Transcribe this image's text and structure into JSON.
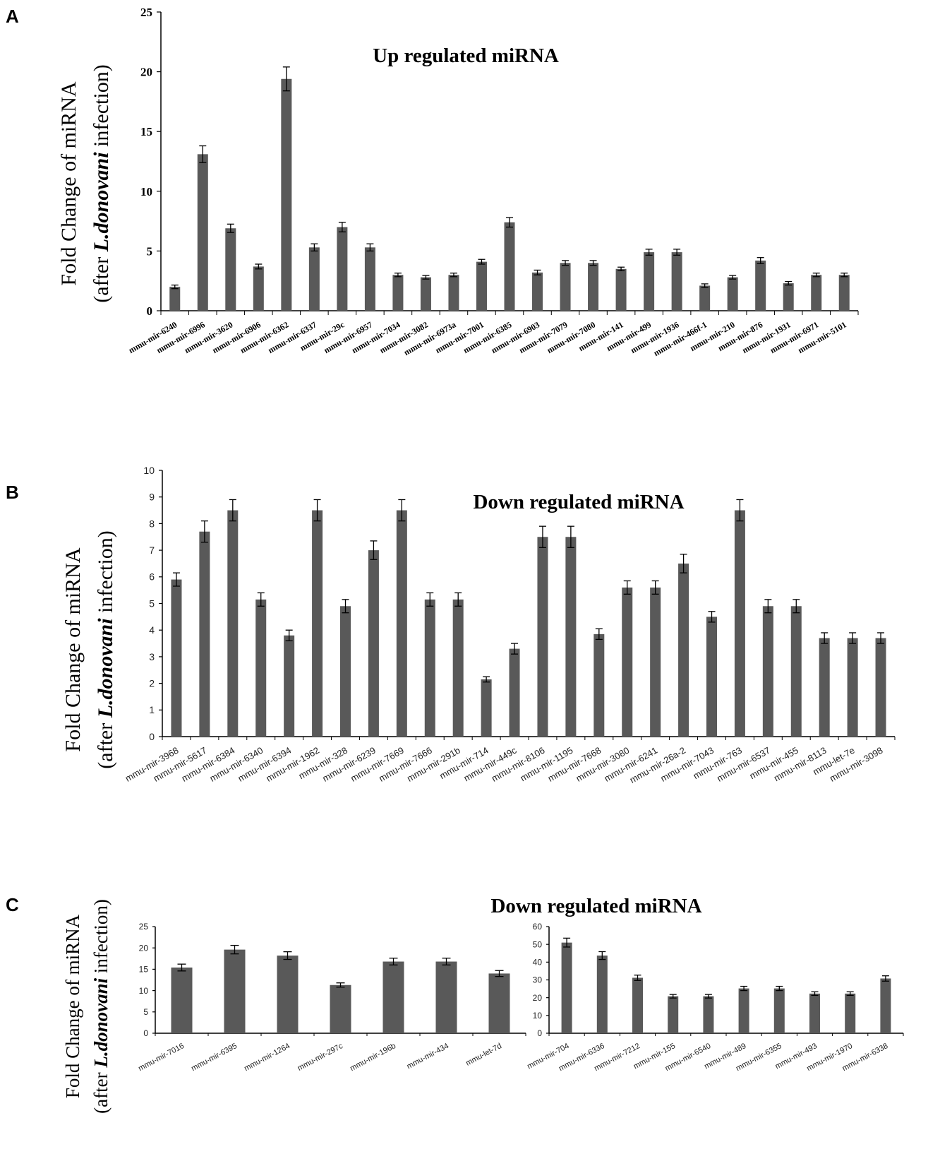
{
  "panels": {
    "a": "A",
    "b": "B",
    "c": "C"
  },
  "ylabel": {
    "line1": "Fold Change of miRNA",
    "line2_pre": "(after ",
    "line2_em": "L.donovani",
    "line2_post": " infection)"
  },
  "colors": {
    "bar": "#595959",
    "axis": "#000000",
    "error": "#000000"
  },
  "chart_data": [
    {
      "id": "A",
      "type": "bar",
      "title": "Up regulated miRNA",
      "xlabel": "",
      "ylabel": "Fold Change of miRNA (after L.donovani infection)",
      "ylim": [
        0,
        25
      ],
      "yticks": [
        0,
        5,
        10,
        15,
        20,
        25
      ],
      "grid": false,
      "categories": [
        "mmu-mir-6240",
        "mmu-mir-6996",
        "mmu-mir-3620",
        "mmu-mir-6906",
        "mmu-mir-6362",
        "mmu-mir-6337",
        "mmu-mir-29c",
        "mmu-mir-6957",
        "mmu-mir-7034",
        "mmu-mir-3082",
        "mmu-mir-6973a",
        "mmu-mir-7001",
        "mmu-mir-6385",
        "mmu-mir-6903",
        "mmu-mir-7079",
        "mmu-mir-7080",
        "mmu-mir-141",
        "mmu-mir-499",
        "mmu-mir-1936",
        "mmu-mir-466f-1",
        "mmu-mir-210",
        "mmu-mir-876",
        "mmu-mir-1931",
        "mmu-mir-6971",
        "mmu-mir-5101"
      ],
      "values": [
        2.0,
        13.1,
        6.9,
        3.7,
        19.4,
        5.3,
        7.0,
        5.3,
        3.0,
        2.8,
        3.0,
        4.1,
        7.4,
        3.2,
        4.0,
        4.0,
        3.5,
        4.9,
        4.9,
        2.1,
        2.8,
        4.2,
        2.3,
        3.0,
        3.0
      ],
      "errors": [
        0.15,
        0.7,
        0.35,
        0.2,
        1.0,
        0.3,
        0.4,
        0.3,
        0.15,
        0.15,
        0.15,
        0.2,
        0.4,
        0.2,
        0.2,
        0.2,
        0.15,
        0.25,
        0.25,
        0.15,
        0.15,
        0.25,
        0.15,
        0.15,
        0.15
      ]
    },
    {
      "id": "B",
      "type": "bar",
      "title": "Down regulated miRNA",
      "xlabel": "",
      "ylabel": "Fold Change of miRNA (after L.donovani infection)",
      "ylim": [
        0,
        10
      ],
      "yticks": [
        0,
        1,
        2,
        3,
        4,
        5,
        6,
        7,
        8,
        9,
        10
      ],
      "grid": false,
      "categories": [
        "mmu-mir-3968",
        "mmu-mir-5617",
        "mmu-mir-6384",
        "mmu-mir-6340",
        "mmu-mir-6394",
        "mmu-mir-1962",
        "mmu-mir-328",
        "mmu-mir-6239",
        "mmu-mir-7669",
        "mmu-mir-7666",
        "mmu-mir-291b",
        "mmu-mir-714",
        "mmu-mir-449c",
        "mmu-mir-8106",
        "mmu-mir-1195",
        "mmu-mir-7668",
        "mmu-mir-3080",
        "mmu-mir-6241",
        "mmu-mir-26a-2",
        "mmu-mir-7043",
        "mmu-mir-763",
        "mmu-mir-6537",
        "mmu-mir-455",
        "mmu-mir-8113",
        "mmu-let-7e",
        "mmu-mir-3098"
      ],
      "values": [
        5.9,
        7.7,
        8.5,
        5.15,
        3.8,
        8.5,
        4.9,
        7.0,
        8.5,
        5.15,
        5.15,
        2.15,
        3.3,
        7.5,
        7.5,
        3.85,
        5.6,
        5.6,
        6.5,
        4.5,
        8.5,
        4.9,
        4.9,
        3.7,
        3.7,
        3.7
      ],
      "errors": [
        0.25,
        0.4,
        0.4,
        0.25,
        0.2,
        0.4,
        0.25,
        0.35,
        0.4,
        0.25,
        0.25,
        0.1,
        0.2,
        0.4,
        0.4,
        0.2,
        0.25,
        0.25,
        0.35,
        0.2,
        0.4,
        0.25,
        0.25,
        0.2,
        0.2,
        0.2
      ]
    },
    {
      "id": "C1",
      "type": "bar",
      "title": "Down regulated miRNA",
      "xlabel": "",
      "ylabel": "Fold Change of miRNA (after L.donovani infection)",
      "ylim": [
        0,
        25
      ],
      "yticks": [
        0,
        5,
        10,
        15,
        20,
        25
      ],
      "grid": false,
      "categories": [
        "mmu-mir-7016",
        "mmu-mir-6395",
        "mmu-mir-1264",
        "mmu-mir-297c",
        "mmu-mir-196b",
        "mmu-mir-434",
        "mmu-let-7d"
      ],
      "values": [
        15.4,
        19.6,
        18.2,
        11.3,
        16.8,
        16.8,
        14.0
      ],
      "errors": [
        0.8,
        1.0,
        0.9,
        0.5,
        0.8,
        0.8,
        0.7
      ]
    },
    {
      "id": "C2",
      "type": "bar",
      "title": "Down regulated miRNA",
      "xlabel": "",
      "ylabel": "",
      "ylim": [
        0,
        60
      ],
      "yticks": [
        0,
        10,
        20,
        30,
        40,
        50,
        60
      ],
      "grid": false,
      "categories": [
        "mmu-mir-704",
        "mmu-mir-6336",
        "mmu-mir-7212",
        "mmu-mir-155",
        "mmu-mir-6540",
        "mmu-mir-489",
        "mmu-mir-6355",
        "mmu-mir-493",
        "mmu-mir-1970",
        "mmu-mir-6338"
      ],
      "values": [
        51.0,
        43.7,
        31.2,
        20.8,
        20.8,
        25.2,
        25.2,
        22.3,
        22.3,
        30.8
      ],
      "errors": [
        2.5,
        2.2,
        1.5,
        1.0,
        1.0,
        1.2,
        1.2,
        1.0,
        1.0,
        1.5
      ]
    }
  ]
}
